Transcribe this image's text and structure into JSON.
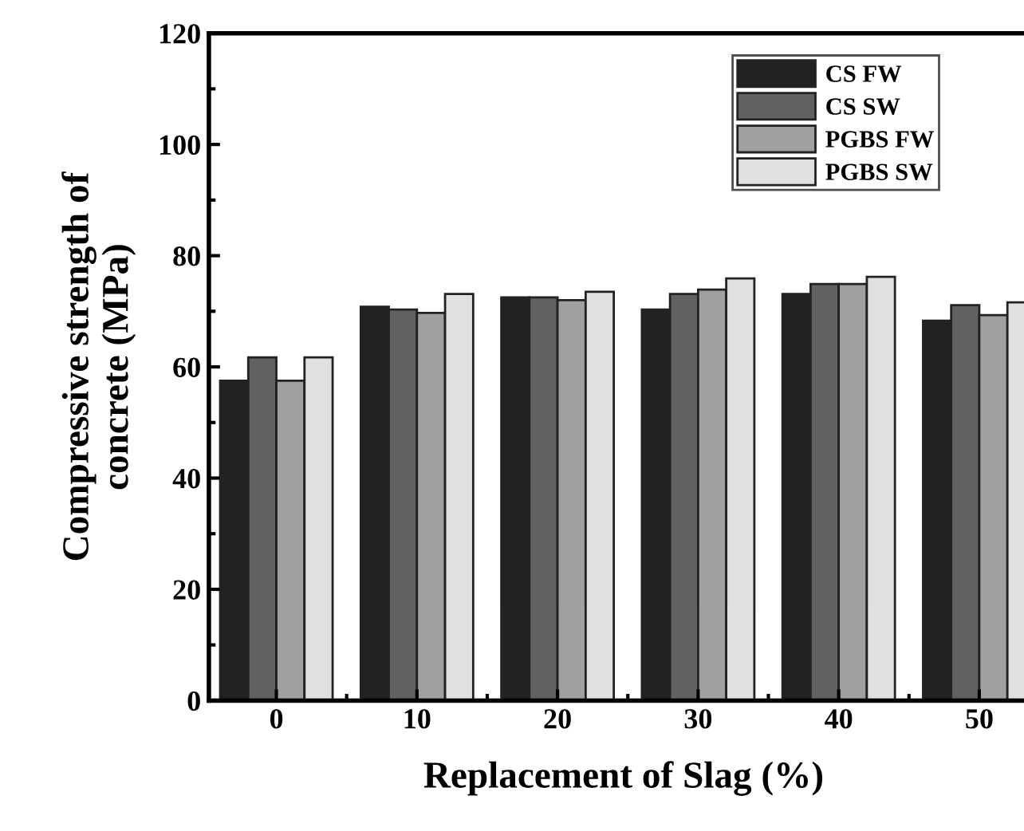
{
  "chart_data": {
    "type": "bar",
    "xlabel": "Replacement of Slag (%)",
    "ylabel": "Compressive strength of\nconcrete (MPa)",
    "categories": [
      "0",
      "10",
      "20",
      "30",
      "40",
      "50"
    ],
    "series": [
      {
        "name": "CS FW",
        "color": "#222222",
        "values": [
          57.5,
          70.8,
          72.5,
          70.3,
          73.1,
          68.3
        ]
      },
      {
        "name": "CS SW",
        "color": "#616161",
        "values": [
          61.7,
          70.3,
          72.5,
          73.1,
          74.9,
          71.1
        ]
      },
      {
        "name": "PGBS FW",
        "color": "#a0a0a0",
        "values": [
          57.5,
          69.7,
          72.0,
          73.9,
          74.9,
          69.3
        ]
      },
      {
        "name": "PGBS SW",
        "color": "#e0e0e0",
        "values": [
          61.7,
          73.1,
          73.5,
          75.9,
          76.2,
          71.6
        ]
      }
    ],
    "ylim": [
      0,
      120
    ],
    "yticks": [
      0,
      20,
      40,
      60,
      80,
      100,
      120
    ],
    "grid": false,
    "legend": "top right"
  }
}
